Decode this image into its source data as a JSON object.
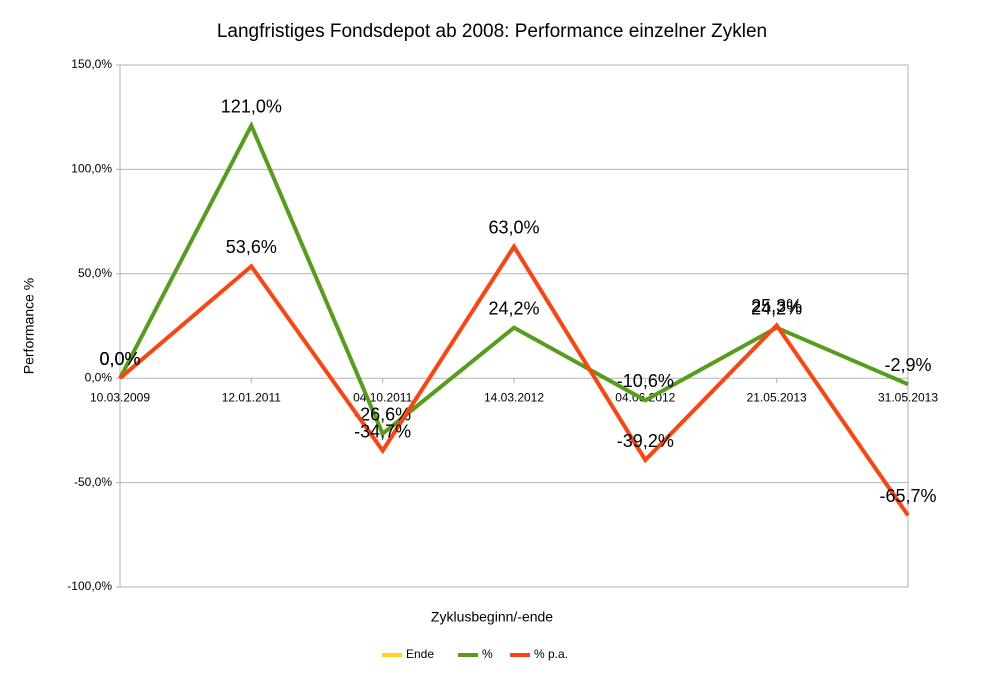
{
  "chart_data": {
    "type": "line",
    "title": "Langfristiges Fondsdepot ab 2008: Performance einzelner Zyklen",
    "x_label": "Zyklusbeginn/-ende",
    "y_label": "Performance %",
    "categories": [
      "10.03.2009",
      "12.01.2011",
      "04.10.2011",
      "14.03.2012",
      "04.06.2012",
      "21.05.2013",
      "31.05.2013"
    ],
    "series": [
      {
        "name": "Ende",
        "color": "#ffd320",
        "values": [
          null,
          null,
          null,
          null,
          null,
          null,
          null
        ]
      },
      {
        "name": "%",
        "color": "#579d1c",
        "values": [
          0,
          121,
          -26.6,
          24.2,
          -10.6,
          24.2,
          -2.9
        ],
        "value_labels": [
          "0,0%",
          "121,0%",
          "-26,6%",
          "24,2%",
          "-10,6%",
          "24,2%",
          "-2,9%"
        ]
      },
      {
        "name": "% p.a.",
        "color": "#ff420e",
        "values": [
          0,
          53.6,
          -34.7,
          63,
          -39.2,
          25.3,
          -65.7
        ],
        "value_labels": [
          "0,0%",
          "53,6%",
          "-34,7%",
          "63,0%",
          "-39,2%",
          "25,3%",
          "-65,7%"
        ]
      }
    ],
    "ylim": [
      -100,
      150
    ],
    "yticks": [
      {
        "value": -100,
        "label": "-100,0%"
      },
      {
        "value": -50,
        "label": "-50,0%"
      },
      {
        "value": 0,
        "label": "0,0%"
      },
      {
        "value": 50,
        "label": "50,0%"
      },
      {
        "value": 100,
        "label": "100,0%"
      },
      {
        "value": 150,
        "label": "150,0%"
      }
    ],
    "grid": true,
    "legend": "bottom"
  }
}
